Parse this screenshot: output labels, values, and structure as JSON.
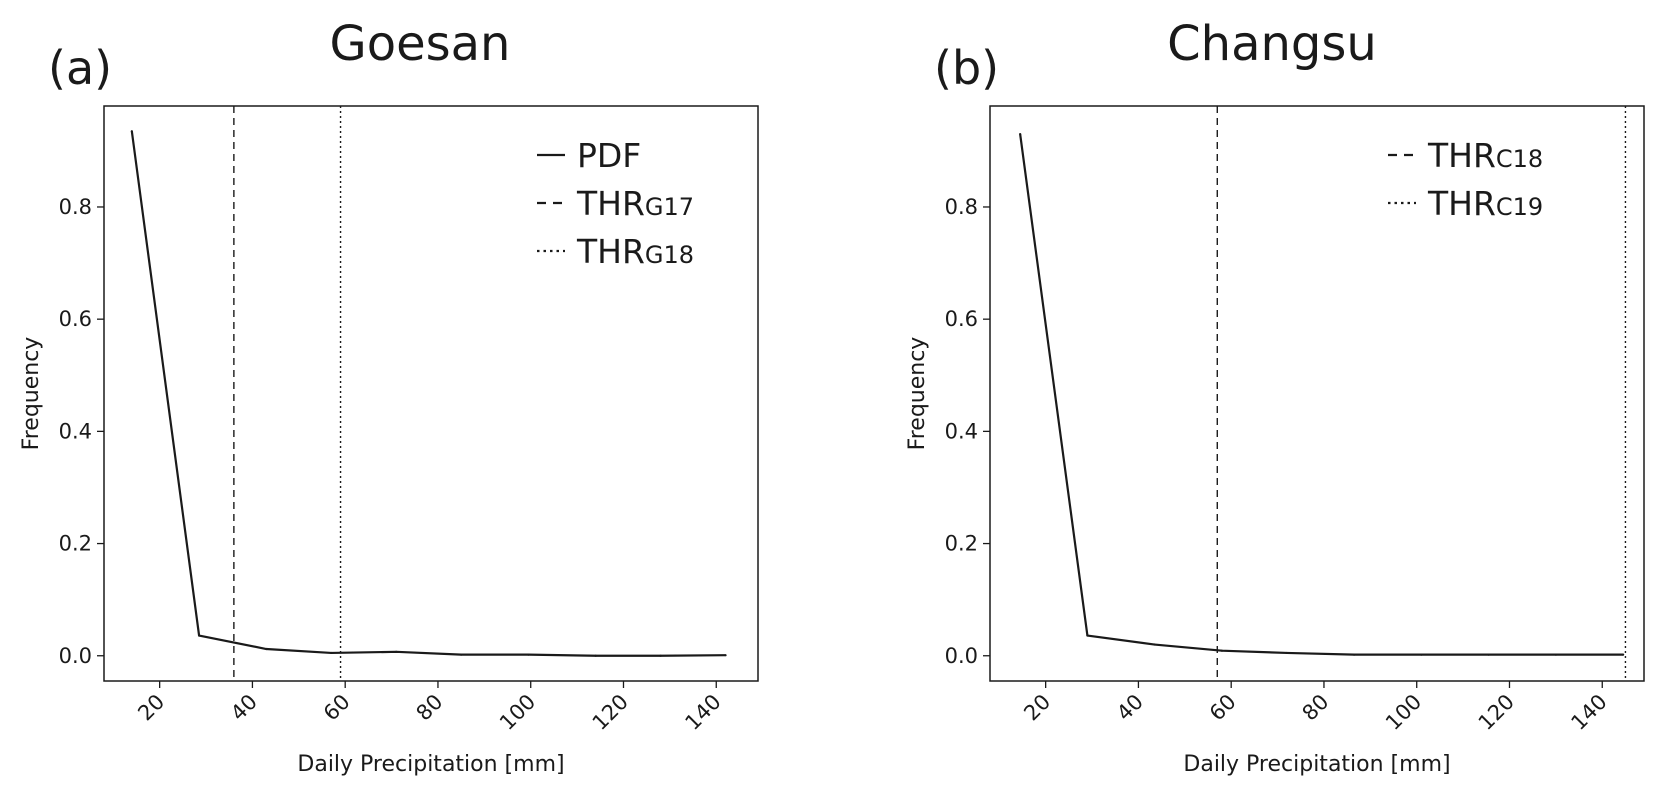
{
  "chart_data": [
    {
      "type": "line",
      "panel_label": "(a)",
      "title": "Goesan",
      "xlabel": "Daily Precipitation [mm]",
      "ylabel": "Frequency",
      "xlim": [
        8,
        149
      ],
      "ylim": [
        -0.045,
        0.98
      ],
      "xticks": [
        20,
        40,
        60,
        80,
        100,
        120,
        140
      ],
      "yticks": [
        0.0,
        0.2,
        0.4,
        0.6,
        0.8
      ],
      "series": [
        {
          "name": "PDF",
          "style": "solid",
          "x": [
            14,
            28.5,
            43,
            57,
            71,
            85,
            99.5,
            114,
            128,
            142
          ],
          "y": [
            0.935,
            0.036,
            0.012,
            0.005,
            0.007,
            0.002,
            0.002,
            0.0,
            0.0,
            0.001
          ]
        }
      ],
      "thresholds": [
        {
          "label": "THR",
          "subscript": "G17",
          "x": 36,
          "style": "dashed"
        },
        {
          "label": "THR",
          "subscript": "G18",
          "x": 59,
          "style": "dotted"
        }
      ],
      "legend": [
        {
          "label": "PDF",
          "subscript": "",
          "style": "solid"
        },
        {
          "label": "THR",
          "subscript": "G17",
          "style": "dashed"
        },
        {
          "label": "THR",
          "subscript": "G18",
          "style": "dotted"
        }
      ],
      "legend_position": "top-right",
      "grid": false
    },
    {
      "type": "line",
      "panel_label": "(b)",
      "title": "Changsu",
      "xlabel": "Daily Precipitation [mm]",
      "ylabel": "Frequency",
      "xlim": [
        8,
        149
      ],
      "ylim": [
        -0.045,
        0.98
      ],
      "xticks": [
        20,
        40,
        60,
        80,
        100,
        120,
        140
      ],
      "yticks": [
        0.0,
        0.2,
        0.4,
        0.6,
        0.8
      ],
      "series": [
        {
          "name": "",
          "style": "solid",
          "x": [
            14.5,
            29,
            43.5,
            58,
            72,
            86.5,
            101,
            115.5,
            130,
            144.5
          ],
          "y": [
            0.93,
            0.036,
            0.02,
            0.009,
            0.005,
            0.002,
            0.002,
            0.002,
            0.002,
            0.002
          ]
        }
      ],
      "thresholds": [
        {
          "label": "THR",
          "subscript": "C18",
          "x": 57,
          "style": "dashed"
        },
        {
          "label": "THR",
          "subscript": "C19",
          "x": 145,
          "style": "dotted"
        }
      ],
      "legend": [
        {
          "label": "THR",
          "subscript": "C18",
          "style": "dashed"
        },
        {
          "label": "THR",
          "subscript": "C19",
          "style": "dotted"
        }
      ],
      "legend_position": "top-right",
      "grid": false
    }
  ]
}
